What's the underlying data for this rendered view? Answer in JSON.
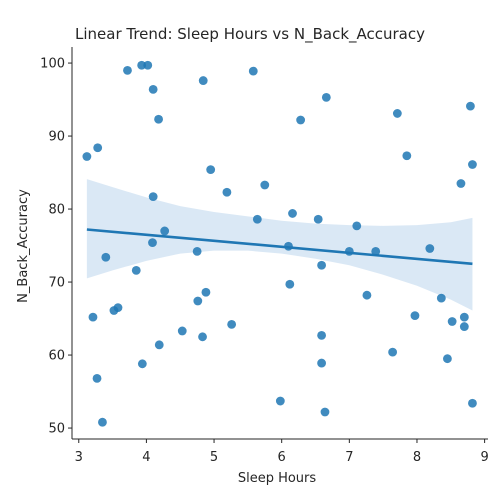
{
  "chart_data": {
    "type": "scatter",
    "title": "Linear Trend: Sleep Hours vs N_Back_Accuracy",
    "xlabel": "Sleep Hours",
    "ylabel": "N_Back_Accuracy",
    "xlim": [
      2.9,
      9.05
    ],
    "ylim": [
      48.5,
      102.2
    ],
    "xticks": [
      3,
      4,
      5,
      6,
      7,
      8,
      9
    ],
    "yticks": [
      50,
      60,
      70,
      80,
      90,
      100
    ],
    "grid": false,
    "legend": "none",
    "colors": {
      "points": "#1f77b4",
      "line": "#1f77b4",
      "ci_band": "#c6dbef"
    },
    "points": [
      {
        "x": 3.12,
        "y": 87.2
      },
      {
        "x": 3.28,
        "y": 88.4
      },
      {
        "x": 3.72,
        "y": 99.0
      },
      {
        "x": 3.93,
        "y": 99.7
      },
      {
        "x": 4.02,
        "y": 99.7
      },
      {
        "x": 4.1,
        "y": 96.4
      },
      {
        "x": 4.18,
        "y": 92.3
      },
      {
        "x": 4.84,
        "y": 97.6
      },
      {
        "x": 5.58,
        "y": 98.9
      },
      {
        "x": 6.66,
        "y": 95.3
      },
      {
        "x": 6.28,
        "y": 92.2
      },
      {
        "x": 7.71,
        "y": 93.1
      },
      {
        "x": 8.79,
        "y": 94.1
      },
      {
        "x": 7.85,
        "y": 87.3
      },
      {
        "x": 8.82,
        "y": 86.1
      },
      {
        "x": 4.95,
        "y": 85.4
      },
      {
        "x": 5.75,
        "y": 83.3
      },
      {
        "x": 8.65,
        "y": 83.5
      },
      {
        "x": 5.19,
        "y": 82.3
      },
      {
        "x": 4.1,
        "y": 81.7
      },
      {
        "x": 6.16,
        "y": 79.4
      },
      {
        "x": 5.64,
        "y": 78.6
      },
      {
        "x": 6.54,
        "y": 78.6
      },
      {
        "x": 7.11,
        "y": 77.7
      },
      {
        "x": 4.27,
        "y": 77.0
      },
      {
        "x": 4.09,
        "y": 75.4
      },
      {
        "x": 6.1,
        "y": 74.9
      },
      {
        "x": 4.75,
        "y": 74.2
      },
      {
        "x": 7.0,
        "y": 74.2
      },
      {
        "x": 7.39,
        "y": 74.2
      },
      {
        "x": 8.19,
        "y": 74.6
      },
      {
        "x": 3.4,
        "y": 73.4
      },
      {
        "x": 6.59,
        "y": 72.3
      },
      {
        "x": 3.85,
        "y": 71.6
      },
      {
        "x": 6.12,
        "y": 69.7
      },
      {
        "x": 4.88,
        "y": 68.6
      },
      {
        "x": 7.26,
        "y": 68.2
      },
      {
        "x": 8.36,
        "y": 67.8
      },
      {
        "x": 4.76,
        "y": 67.4
      },
      {
        "x": 3.58,
        "y": 66.5
      },
      {
        "x": 3.52,
        "y": 66.1
      },
      {
        "x": 3.21,
        "y": 65.2
      },
      {
        "x": 7.97,
        "y": 65.4
      },
      {
        "x": 8.7,
        "y": 65.2
      },
      {
        "x": 8.52,
        "y": 64.6
      },
      {
        "x": 5.26,
        "y": 64.2
      },
      {
        "x": 8.7,
        "y": 63.9
      },
      {
        "x": 4.53,
        "y": 63.3
      },
      {
        "x": 6.59,
        "y": 62.7
      },
      {
        "x": 4.83,
        "y": 62.5
      },
      {
        "x": 4.19,
        "y": 61.4
      },
      {
        "x": 7.64,
        "y": 60.4
      },
      {
        "x": 8.45,
        "y": 59.5
      },
      {
        "x": 3.94,
        "y": 58.8
      },
      {
        "x": 6.59,
        "y": 58.9
      },
      {
        "x": 3.27,
        "y": 56.8
      },
      {
        "x": 5.98,
        "y": 53.7
      },
      {
        "x": 8.82,
        "y": 53.4
      },
      {
        "x": 6.64,
        "y": 52.2
      },
      {
        "x": 3.35,
        "y": 50.8
      }
    ],
    "trend_line": {
      "x": [
        3.12,
        8.82
      ],
      "y": [
        77.2,
        72.5
      ]
    },
    "confidence_band": {
      "x": [
        3.12,
        3.5,
        4.0,
        4.5,
        5.0,
        5.5,
        6.0,
        6.5,
        7.0,
        7.5,
        8.0,
        8.5,
        8.82
      ],
      "lower": [
        70.5,
        71.6,
        72.9,
        73.9,
        74.3,
        74.3,
        73.9,
        73.2,
        72.3,
        71.0,
        69.5,
        67.6,
        66.1
      ],
      "upper": [
        84.1,
        83.0,
        81.6,
        80.4,
        79.6,
        79.0,
        78.4,
        78.0,
        77.8,
        77.7,
        77.8,
        78.2,
        78.8
      ]
    }
  }
}
